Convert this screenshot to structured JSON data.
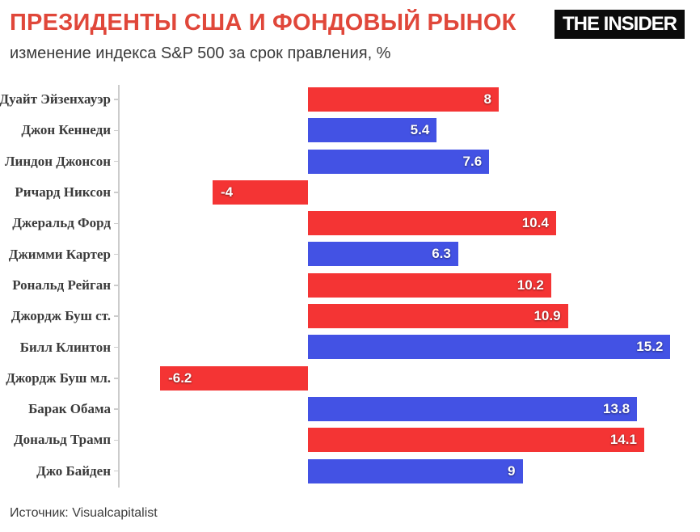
{
  "header": {
    "title": "ПРЕЗИДЕНТЫ США И ФОНДОВЫЙ РЫНОК",
    "subtitle": "изменение индекса S&P 500 за срок правления, %",
    "logo_text": "THE INSIDER",
    "title_color": "#e0473a"
  },
  "footer": {
    "source": "Источник: Visualcapitalist"
  },
  "chart_data": {
    "type": "bar",
    "orientation": "horizontal",
    "title": "ПРЕЗИДЕНТЫ США И ФОНДОВЫЙ РЫНОК",
    "subtitle": "изменение индекса S&P 500 за срок правления, %",
    "xlabel": "",
    "ylabel": "",
    "categories": [
      "Дуайт Эйзенхауэр",
      "Джон Кеннеди",
      "Линдон Джонсон",
      "Ричард Никсон",
      "Джеральд Форд",
      "Джимми Картер",
      "Рональд Рейган",
      "Джордж Буш ст.",
      "Билл Клинтон",
      "Джордж Буш мл.",
      "Барак Обама",
      "Дональд Трамп",
      "Джо Байден"
    ],
    "values": [
      8,
      5.4,
      7.6,
      -4,
      10.4,
      6.3,
      10.2,
      10.9,
      15.2,
      -6.2,
      13.8,
      14.1,
      9
    ],
    "value_labels": [
      "8",
      "5.4",
      "7.6",
      "-4",
      "10.4",
      "6.3",
      "10.2",
      "10.9",
      "15.2",
      "-6.2",
      "13.8",
      "14.1",
      "9"
    ],
    "parties": [
      "republican",
      "democrat",
      "democrat",
      "republican",
      "republican",
      "democrat",
      "republican",
      "republican",
      "democrat",
      "republican",
      "democrat",
      "republican",
      "democrat"
    ],
    "colors": {
      "republican": "#f43434",
      "democrat": "#4352e4",
      "axis": "#cccccc",
      "label_text": "#3b3b3b",
      "value_text": "#ffffff"
    },
    "xlim": [
      -8,
      16.4
    ],
    "grid": false,
    "legend_position": "none",
    "value_label_placement": "inside-end",
    "source": "Источник: Visualcapitalist"
  }
}
